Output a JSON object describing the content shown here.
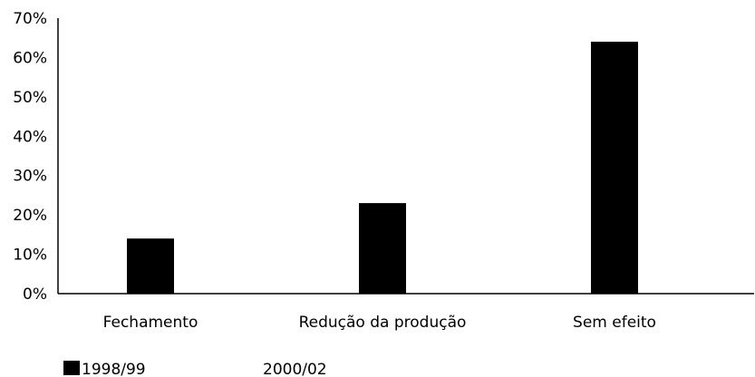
{
  "chart_data": {
    "type": "bar",
    "categories": [
      "Fechamento",
      "Redução da produção",
      "Sem efeito"
    ],
    "series": [
      {
        "name": "1998/99",
        "values": [
          14,
          23,
          64
        ],
        "color": "#000000"
      },
      {
        "name": "2000/02",
        "values": [
          null,
          null,
          null
        ],
        "color": "#ffffff"
      }
    ],
    "ylim": [
      0,
      70
    ],
    "yticks": [
      "0%",
      "10%",
      "20%",
      "30%",
      "40%",
      "50%",
      "60%",
      "70%"
    ],
    "grid": false,
    "legend_position": "bottom-left"
  }
}
